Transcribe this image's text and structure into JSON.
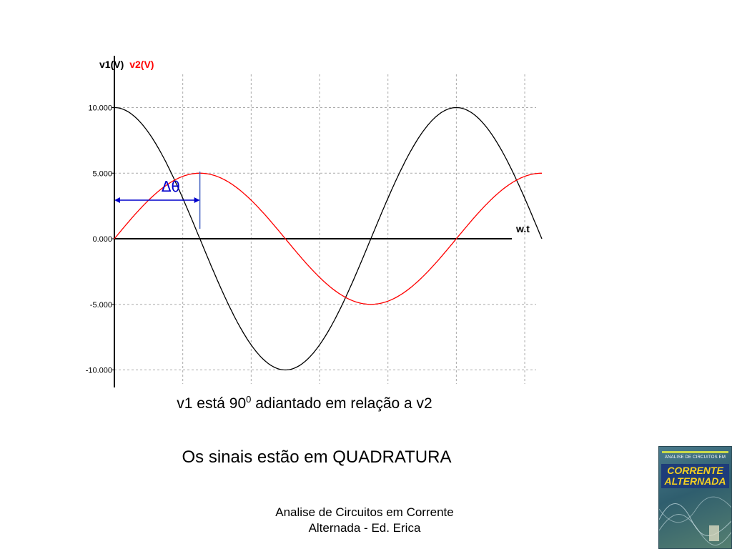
{
  "chart_data": {
    "type": "line",
    "y_title_parts": [
      {
        "text": "v1(V)",
        "color": "#000000"
      },
      {
        "text": "v2(V)",
        "color": "#ff0000"
      }
    ],
    "x_axis_label": "w.t",
    "y_ticks": [
      10,
      5,
      0,
      -5,
      -10
    ],
    "y_tick_labels": [
      "10.000",
      "5.000",
      "0.000",
      "-5.000",
      "-10.000"
    ],
    "ylim": [
      -10,
      10
    ],
    "grid": true,
    "series": [
      {
        "name": "v1(V)",
        "color": "#000000",
        "amplitude": 10,
        "phase_deg": 90
      },
      {
        "name": "v2(V)",
        "color": "#ff0000",
        "amplitude": 5,
        "phase_deg": 0
      }
    ],
    "x_range_deg": [
      0,
      450
    ],
    "vertical_grid_deg": [
      0,
      72,
      144,
      216,
      288,
      360,
      432
    ],
    "annotation": {
      "text": "Δθ",
      "from_deg": 0,
      "to_deg": 90,
      "color": "#0000cc"
    }
  },
  "captions": {
    "phase_before": "v1 está 90",
    "phase_sup": "0",
    "phase_after": " adiantado em relação a v2",
    "quadrature": "Os sinais estão em QUADRATURA"
  },
  "footer": {
    "line1": "Analise de Circuitos em Corrente",
    "line2": "Alternada - Ed. Erica"
  },
  "book_cover": {
    "small_text": "ANALISE DE CIRCUITOS EM",
    "title_line1": "CORRENTE",
    "title_line2": "ALTERNADA"
  }
}
